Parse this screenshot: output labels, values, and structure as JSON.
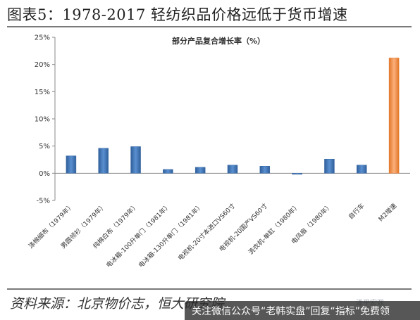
{
  "figure": {
    "title": "图表5：1978-2017 轻纺织品价格远低于货币增速",
    "source": "资料来源：北京物价志，恒大研究院",
    "watermark": "泽平宏观",
    "banner": "关注微信公众号“老韩实盘”回复“指标”免费领"
  },
  "chart_data": {
    "type": "bar",
    "title": "部分产品复合增长率（%）",
    "categories": [
      "涤棉细布（1979年）",
      "男圆领衫（1979年）",
      "纯棉白布（1979年）",
      "电冰箱-100升单门（1981年）",
      "电冰箱-130升单门（1981年）",
      "电视机-20寸本进口VS60寸",
      "电视机-20国产VS60寸",
      "洗衣机-单缸（1980年）",
      "电风扇（1980年）",
      "自行车",
      "M2增速"
    ],
    "values": [
      3.2,
      4.6,
      4.9,
      0.7,
      1.1,
      1.5,
      1.3,
      -0.2,
      2.6,
      1.5,
      21.2
    ],
    "ylim": [
      -5,
      25
    ],
    "yticks": [
      -5,
      0,
      5,
      10,
      15,
      20,
      25
    ],
    "ytick_labels": [
      "-5%",
      "0%",
      "5%",
      "10%",
      "15%",
      "20%",
      "25%"
    ],
    "grid": false,
    "colors": {
      "bar": "#4f81bd",
      "bar_dark": "#3a6aa5",
      "highlight": "#f79646",
      "highlight_dark": "#e2772a",
      "axis": "#8a8a8a"
    },
    "highlight_index": 10
  }
}
